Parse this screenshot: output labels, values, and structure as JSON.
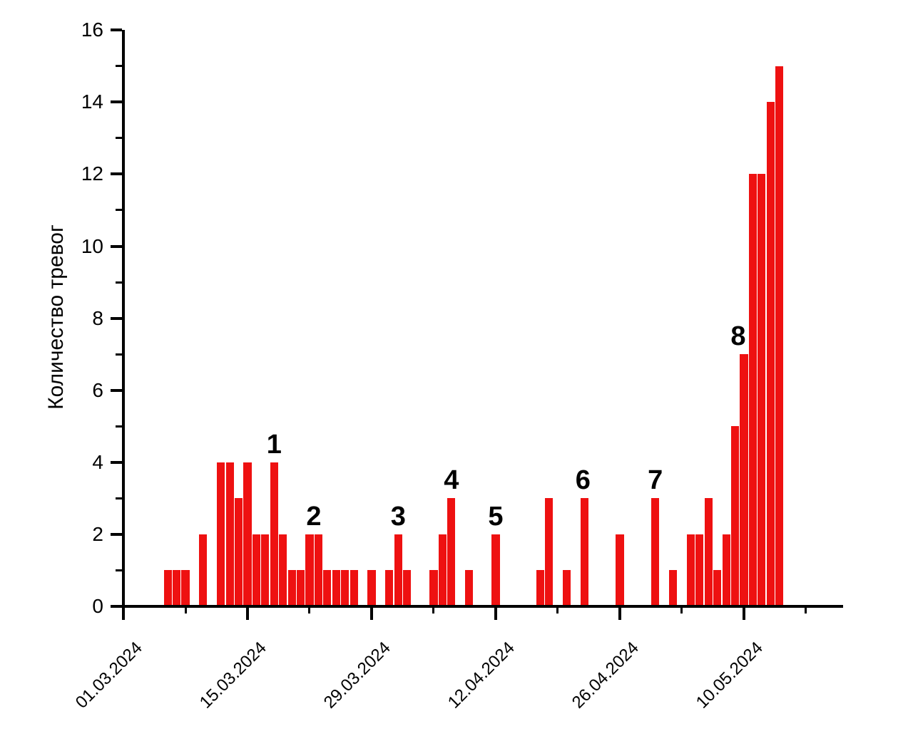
{
  "chart_data": {
    "type": "bar",
    "title": "",
    "xlabel": "",
    "ylabel": "Количество тревог",
    "ylim": [
      0,
      16
    ],
    "y_major_tick_labels": [
      "0",
      "2",
      "4",
      "6",
      "8",
      "10",
      "12",
      "14",
      "16"
    ],
    "y_major_step": 2,
    "y_minor_step": 1,
    "x_axis_start_date": "01.03.2024",
    "x_major_step_days": 14,
    "x_minor_step_days": 7,
    "x_major_tick_labels": [
      "01.03.2024",
      "15.03.2024",
      "29.03.2024",
      "12.04.2024",
      "26.04.2024",
      "10.05.2024"
    ],
    "grid": "off",
    "legend": "none",
    "bar_color": "#ee1111",
    "axis_color": "#000000",
    "bars": [
      {
        "d": "06.03.2024",
        "v": 1
      },
      {
        "d": "07.03.2024",
        "v": 1
      },
      {
        "d": "08.03.2024",
        "v": 1
      },
      {
        "d": "10.03.2024",
        "v": 2
      },
      {
        "d": "12.03.2024",
        "v": 4
      },
      {
        "d": "13.03.2024",
        "v": 4
      },
      {
        "d": "14.03.2024",
        "v": 3
      },
      {
        "d": "15.03.2024",
        "v": 4
      },
      {
        "d": "16.03.2024",
        "v": 2
      },
      {
        "d": "17.03.2024",
        "v": 2
      },
      {
        "d": "18.03.2024",
        "v": 4
      },
      {
        "d": "19.03.2024",
        "v": 2
      },
      {
        "d": "20.03.2024",
        "v": 1
      },
      {
        "d": "21.03.2024",
        "v": 1
      },
      {
        "d": "22.03.2024",
        "v": 2
      },
      {
        "d": "23.03.2024",
        "v": 2
      },
      {
        "d": "24.03.2024",
        "v": 1
      },
      {
        "d": "25.03.2024",
        "v": 1
      },
      {
        "d": "26.03.2024",
        "v": 1
      },
      {
        "d": "27.03.2024",
        "v": 1
      },
      {
        "d": "29.03.2024",
        "v": 1
      },
      {
        "d": "31.03.2024",
        "v": 1
      },
      {
        "d": "01.04.2024",
        "v": 2
      },
      {
        "d": "02.04.2024",
        "v": 1
      },
      {
        "d": "05.04.2024",
        "v": 1
      },
      {
        "d": "06.04.2024",
        "v": 2
      },
      {
        "d": "07.04.2024",
        "v": 3
      },
      {
        "d": "09.04.2024",
        "v": 1
      },
      {
        "d": "12.04.2024",
        "v": 2
      },
      {
        "d": "17.04.2024",
        "v": 1
      },
      {
        "d": "18.04.2024",
        "v": 3
      },
      {
        "d": "20.04.2024",
        "v": 1
      },
      {
        "d": "22.04.2024",
        "v": 3
      },
      {
        "d": "26.04.2024",
        "v": 2
      },
      {
        "d": "30.04.2024",
        "v": 3
      },
      {
        "d": "02.05.2024",
        "v": 1
      },
      {
        "d": "04.05.2024",
        "v": 2
      },
      {
        "d": "05.05.2024",
        "v": 2
      },
      {
        "d": "06.05.2024",
        "v": 3
      },
      {
        "d": "07.05.2024",
        "v": 1
      },
      {
        "d": "08.05.2024",
        "v": 2
      },
      {
        "d": "09.05.2024",
        "v": 5
      },
      {
        "d": "10.05.2024",
        "v": 7
      },
      {
        "d": "11.05.2024",
        "v": 12
      },
      {
        "d": "12.05.2024",
        "v": 12
      },
      {
        "d": "13.05.2024",
        "v": 14
      },
      {
        "d": "14.05.2024",
        "v": 15
      }
    ],
    "annotations": [
      {
        "n": "1",
        "d": "18.03.2024",
        "dx": 0
      },
      {
        "n": "2",
        "d": "22.03.2024",
        "dx": 6
      },
      {
        "n": "3",
        "d": "01.04.2024",
        "dx": 0
      },
      {
        "n": "4",
        "d": "07.04.2024",
        "dx": 0
      },
      {
        "n": "5",
        "d": "12.04.2024",
        "dx": 0
      },
      {
        "n": "6",
        "d": "22.04.2024",
        "dx": -2
      },
      {
        "n": "7",
        "d": "30.04.2024",
        "dx": 0
      },
      {
        "n": "8",
        "d": "10.05.2024",
        "dx": -8
      }
    ]
  }
}
